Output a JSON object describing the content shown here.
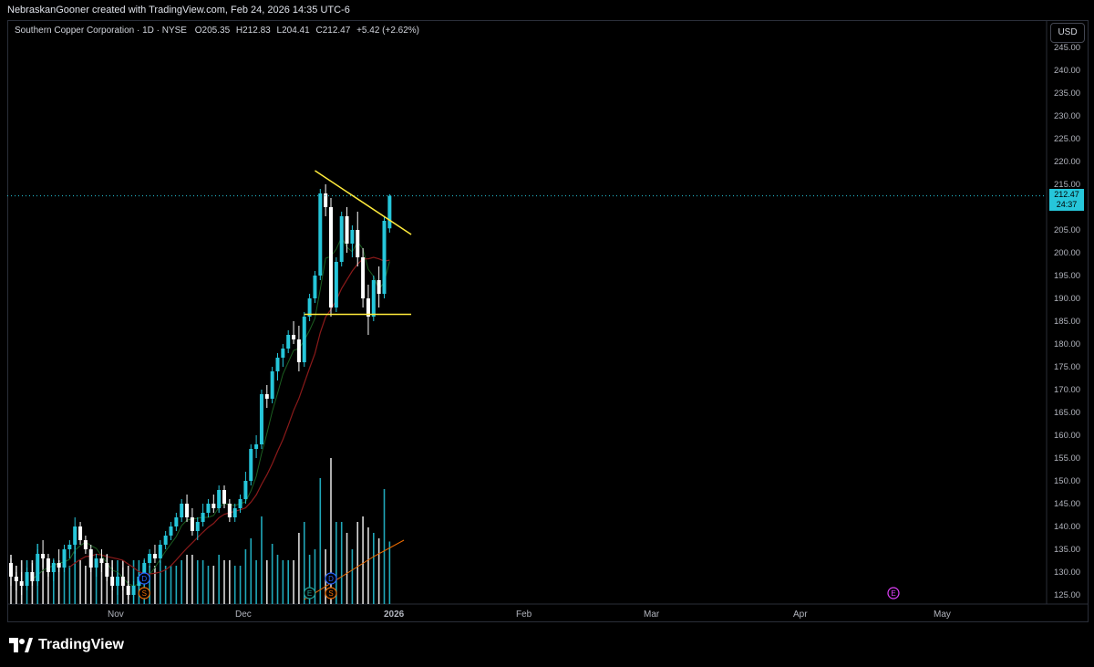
{
  "caption": "NebraskanGooner created with TradingView.com, Feb 24, 2026 14:35 UTC-6",
  "legend": {
    "symbol": "Southern Copper Corporation · 1D · NYSE",
    "o_label": "O",
    "o": "205.35",
    "h_label": "H",
    "h": "212.83",
    "l_label": "L",
    "l": "204.41",
    "c_label": "C",
    "c": "212.47",
    "change": "+5.42 (+2.62%)"
  },
  "currency": "USD",
  "price_badge": {
    "price": "212.47",
    "countdown": "24:37"
  },
  "brand": "TradingView",
  "colors": {
    "up": "#26c6da",
    "down": "#ffffff",
    "ma_fast": "#1b5e20",
    "ma_slow": "#8b1a1a",
    "trendline": "#ffeb3b",
    "vol_ma": "#ef6c00"
  },
  "markers": [
    {
      "letter": "D",
      "color": "#2962ff"
    },
    {
      "letter": "S",
      "color": "#ef6c00"
    },
    {
      "letter": "E",
      "color": "#26a69a"
    },
    {
      "letter": "E",
      "color": "#e040fb"
    }
  ],
  "chart_data": {
    "type": "candlestick",
    "y_ticks": [
      "125.00",
      "130.00",
      "135.00",
      "140.00",
      "145.00",
      "150.00",
      "155.00",
      "160.00",
      "165.00",
      "170.00",
      "175.00",
      "180.00",
      "185.00",
      "190.00",
      "195.00",
      "200.00",
      "205.00",
      "210.00",
      "215.00",
      "220.00",
      "225.00",
      "230.00",
      "235.00",
      "240.00",
      "245.00"
    ],
    "x_ticks": [
      "Nov",
      "Dec",
      "2026",
      "Feb",
      "Mar",
      "Apr",
      "May"
    ],
    "ylim": [
      123,
      245
    ],
    "ohlc": [
      [
        132,
        133,
        127,
        129
      ],
      [
        129,
        130,
        126,
        128
      ],
      [
        128,
        130,
        125,
        127
      ],
      [
        127,
        131,
        126,
        130
      ],
      [
        130,
        132,
        127,
        128
      ],
      [
        128,
        135,
        127,
        134
      ],
      [
        134,
        137,
        131,
        133
      ],
      [
        133,
        134,
        129,
        130
      ],
      [
        130,
        133,
        128,
        132
      ],
      [
        132,
        135,
        130,
        131
      ],
      [
        131,
        136,
        130,
        135
      ],
      [
        135,
        137,
        133,
        136
      ],
      [
        136,
        142,
        134,
        140
      ],
      [
        140,
        141,
        136,
        137
      ],
      [
        137,
        138,
        134,
        135
      ],
      [
        135,
        136,
        130,
        131
      ],
      [
        131,
        134,
        129,
        133
      ],
      [
        133,
        135,
        130,
        132
      ],
      [
        132,
        134,
        128,
        129
      ],
      [
        129,
        131,
        126,
        127
      ],
      [
        127,
        130,
        125,
        129
      ],
      [
        129,
        131,
        126,
        127
      ],
      [
        127,
        128,
        124,
        125
      ],
      [
        125,
        128,
        123,
        127
      ],
      [
        127,
        130,
        125,
        129
      ],
      [
        129,
        133,
        128,
        132
      ],
      [
        132,
        135,
        131,
        134
      ],
      [
        134,
        136,
        132,
        133
      ],
      [
        133,
        137,
        132,
        136
      ],
      [
        136,
        139,
        135,
        138
      ],
      [
        138,
        141,
        137,
        140
      ],
      [
        140,
        143,
        139,
        142
      ],
      [
        142,
        146,
        141,
        145
      ],
      [
        145,
        147,
        141,
        142
      ],
      [
        142,
        144,
        138,
        139
      ],
      [
        139,
        142,
        137,
        141
      ],
      [
        141,
        145,
        140,
        143
      ],
      [
        143,
        146,
        142,
        145
      ],
      [
        145,
        147,
        143,
        144
      ],
      [
        144,
        149,
        143,
        148
      ],
      [
        148,
        149,
        144,
        145
      ],
      [
        145,
        146,
        141,
        142
      ],
      [
        142,
        145,
        141,
        144
      ],
      [
        144,
        147,
        143,
        146
      ],
      [
        146,
        152,
        145,
        150
      ],
      [
        150,
        158,
        149,
        157
      ],
      [
        157,
        160,
        155,
        158
      ],
      [
        158,
        170,
        157,
        169
      ],
      [
        169,
        171,
        166,
        168
      ],
      [
        168,
        175,
        167,
        174
      ],
      [
        174,
        178,
        172,
        177
      ],
      [
        177,
        180,
        175,
        179
      ],
      [
        179,
        183,
        178,
        182
      ],
      [
        182,
        185,
        180,
        181
      ],
      [
        181,
        184,
        174,
        176
      ],
      [
        176,
        187,
        175,
        186
      ],
      [
        186,
        191,
        185,
        190
      ],
      [
        190,
        196,
        189,
        195
      ],
      [
        195,
        214,
        194,
        213
      ],
      [
        213,
        215,
        208,
        210
      ],
      [
        210,
        212,
        186,
        188
      ],
      [
        188,
        199,
        187,
        198
      ],
      [
        198,
        209,
        197,
        208
      ],
      [
        208,
        210,
        200,
        202
      ],
      [
        202,
        206,
        199,
        205
      ],
      [
        205,
        209,
        197,
        199
      ],
      [
        199,
        201,
        188,
        190
      ],
      [
        190,
        193,
        182,
        186
      ],
      [
        186,
        195,
        185,
        194
      ],
      [
        194,
        197,
        188,
        191
      ],
      [
        191,
        208,
        190,
        207
      ],
      [
        205.35,
        212.83,
        204.41,
        212.47
      ]
    ],
    "volume_ticks": "relative"
  }
}
